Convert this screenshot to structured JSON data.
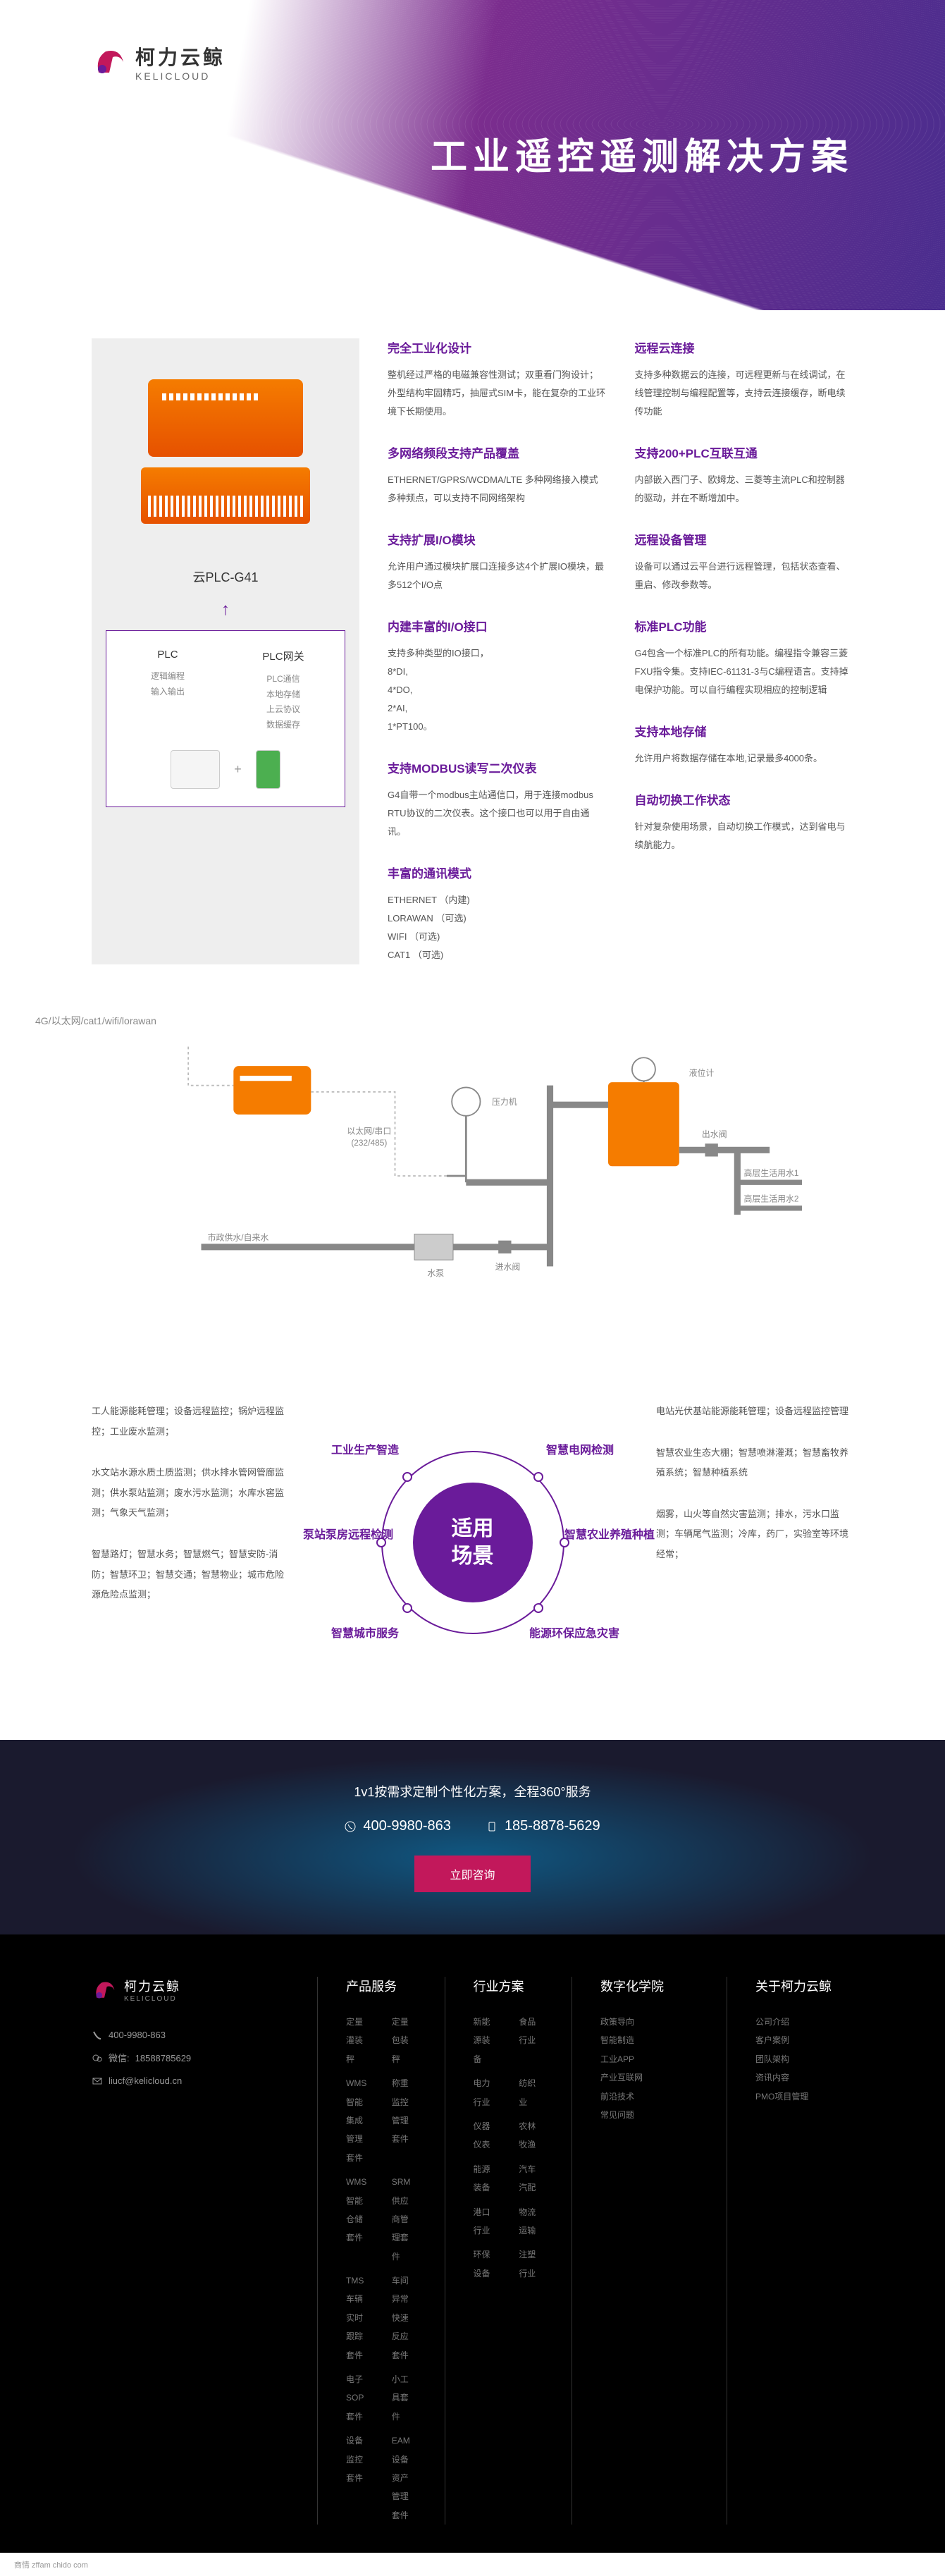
{
  "brand": {
    "name_cn": "柯力云鲸",
    "name_en": "KELICLOUD"
  },
  "hero": {
    "title": "工业遥控遥测解决方案"
  },
  "product": {
    "name": "云PLC-G41",
    "plc_box": {
      "col1": {
        "title": "PLC",
        "desc": "逻辑编程\n输入输出"
      },
      "col2": {
        "title": "PLC网关",
        "desc": "PLC通信\n本地存储\n上云协议\n数据缓存"
      }
    }
  },
  "features_left": [
    {
      "title": "完全工业化设计",
      "desc": "整机经过严格的电磁兼容性测试；双重看门狗设计；外型结构牢固精巧，抽屉式SIM卡，能在复杂的工业环境下长期使用。"
    },
    {
      "title": "多网络频段支持产品覆盖",
      "desc": "ETHERNET/GPRS/WCDMA/LTE 多种网络接入模式多种频点，可以支持不同网络架构"
    },
    {
      "title": "支持扩展I/O模块",
      "desc": "允许用户通过模块扩展口连接多达4个扩展IO模块，最多512个I/O点"
    },
    {
      "title": "内建丰富的I/O接口",
      "desc": "支持多种类型的IO接口，\n8*DI,\n4*DO,\n2*AI,\n1*PT100。"
    },
    {
      "title": "支持MODBUS读写二次仪表",
      "desc": "G4自带一个modbus主站通信口，用于连接modbus RTU协议的二次仪表。这个接口也可以用于自由通讯。"
    },
    {
      "title": "丰富的通讯模式",
      "desc": "ETHERNET （内建)\nLORAWAN （可选)\nWIFI （可选)\nCAT1 （可选)"
    }
  ],
  "features_right": [
    {
      "title": "远程云连接",
      "desc": "支持多种数据云的连接，可远程更新与在线调试，在线管理控制与编程配置等，支持云连接缓存，断电续传功能"
    },
    {
      "title": "支持200+PLC互联互通",
      "desc": "内部嵌入西门子、欧姆龙、三菱等主流PLC和控制器的驱动，并在不断增加中。"
    },
    {
      "title": "远程设备管理",
      "desc": "设备可以通过云平台进行远程管理，包括状态查看、重启、修改参数等。"
    },
    {
      "title": "标准PLC功能",
      "desc": "G4包含一个标准PLC的所有功能。编程指令兼容三菱FXU指令集。支持IEC-61131-3与C编程语言。支持掉电保护功能。可以自行编程实现相应的控制逻辑"
    },
    {
      "title": "支持本地存储",
      "desc": "允许用户将数据存储在本地,记录最多4000条。"
    },
    {
      "title": "自动切换工作状态",
      "desc": "针对复杂使用场景，自动切换工作模式，达到省电与续航能力。"
    }
  ],
  "diagram": {
    "network": "4G/以太网/cat1/wifi/lorawan",
    "ethernet": "以太网/串口\n(232/485)",
    "pressure": "压力机",
    "level": "液位计",
    "outlet": "出水阀",
    "high1": "高层生活用水1",
    "high2": "高层生活用水2",
    "supply": "市政供水/自来水",
    "pump": "水泵",
    "inlet": "进水阀"
  },
  "scenarios": {
    "center": "适用\n场景",
    "nodes": [
      "工业生产智造",
      "智慧电网检测",
      "泵站泵房远程检测",
      "智慧农业养殖种植",
      "智慧城市服务",
      "能源环保应急灾害"
    ],
    "left_texts": [
      "工人能源能耗管理；设备远程监控；锅炉远程监控；工业废水监测；",
      "水文站水源水质土质监测；供水排水管网管廊监测；供水泵站监测；废水污水监测；水库水窖监测；气象天气监测；",
      "智慧路灯；智慧水务；智慧燃气；智慧安防-消防；智慧环卫；智慧交通；智慧物业；城市危险源危险点监测；"
    ],
    "right_texts": [
      "电站光伏基站能源能耗管理；设备远程监控管理",
      "智慧农业生态大棚；智慧喷淋灌溉；智慧畜牧养殖系统；智慧种植系统",
      "烟雾，山火等自然灾害监测；排水，污水口监测；车辆尾气监测；冷库，药厂，实验室等环境经常；"
    ]
  },
  "cta": {
    "title": "1v1按需求定制个性化方案，全程360°服务",
    "phone1": "400-9980-863",
    "phone2": "185-8878-5629",
    "button": "立即咨询"
  },
  "footer": {
    "contact": {
      "phone": "400-9980-863",
      "wechat_label": "微信:",
      "wechat": "18588785629",
      "email": "liucf@kelicloud.cn"
    },
    "cols": [
      {
        "title": "产品服务",
        "links": [
          "定量灌装秤",
          "定量包装秤",
          "WMS智能集成管理套件",
          "称重监控管理套件",
          "WMS智能仓储套件",
          "SRM供应商管理套件",
          "TMS车辆实时跟踪套件",
          "车间异常快速反应套件",
          "电子SOP套件",
          "小工具套件",
          "设备监控套件",
          "EAM设备资产管理套件"
        ]
      },
      {
        "title": "行业方案",
        "links": [
          "新能源装备",
          "食品行业",
          "电力行业",
          "纺织业",
          "仪器仪表",
          "农林牧渔",
          "能源装备",
          "汽车汽配",
          "港口行业",
          "物流运输",
          "环保设备",
          "注塑行业"
        ]
      },
      {
        "title": "数字化学院",
        "links": [
          "政策导向",
          "智能制造",
          "工业APP",
          "产业互联网",
          "前沿技术",
          "常见问题"
        ]
      },
      {
        "title": "关于柯力云鲸",
        "links": [
          "公司介绍",
          "客户案例",
          "团队架构",
          "资讯内容",
          "PMO项目管理"
        ]
      }
    ]
  },
  "bottom": "商情 zffam chido com",
  "colors": {
    "primary": "#6a1b9a",
    "accent": "#c2185b",
    "device": "#f57c00"
  }
}
